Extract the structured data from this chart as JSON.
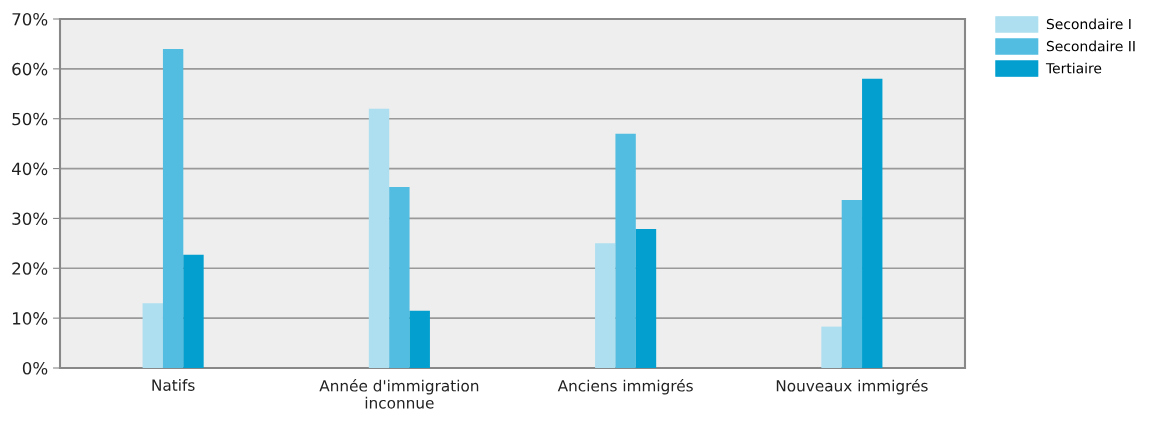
{
  "chart_data": {
    "type": "bar",
    "categories": [
      "Natifs",
      "Année d'immigration\ninconnue",
      "Anciens immigrés",
      "Nouveaux immigrés"
    ],
    "series": [
      {
        "name": "Secondaire I",
        "color": "#addff0",
        "values": [
          13,
          52,
          25,
          8.3
        ]
      },
      {
        "name": "Secondaire II",
        "color": "#52bde0",
        "values": [
          64,
          36.3,
          47,
          33.7
        ]
      },
      {
        "name": "Tertiaire",
        "color": "#029fcf",
        "values": [
          22.7,
          11.5,
          27.9,
          58
        ]
      }
    ],
    "ylim": [
      0,
      70
    ],
    "yticks": [
      {
        "value": 0,
        "label": "0%"
      },
      {
        "value": 10,
        "label": "10%"
      },
      {
        "value": 20,
        "label": "20%"
      },
      {
        "value": 30,
        "label": "30%"
      },
      {
        "value": 40,
        "label": "40%"
      },
      {
        "value": 50,
        "label": "50%"
      },
      {
        "value": 60,
        "label": "60%"
      },
      {
        "value": 70,
        "label": "70%"
      }
    ],
    "grid": "y",
    "legend": "top right"
  }
}
